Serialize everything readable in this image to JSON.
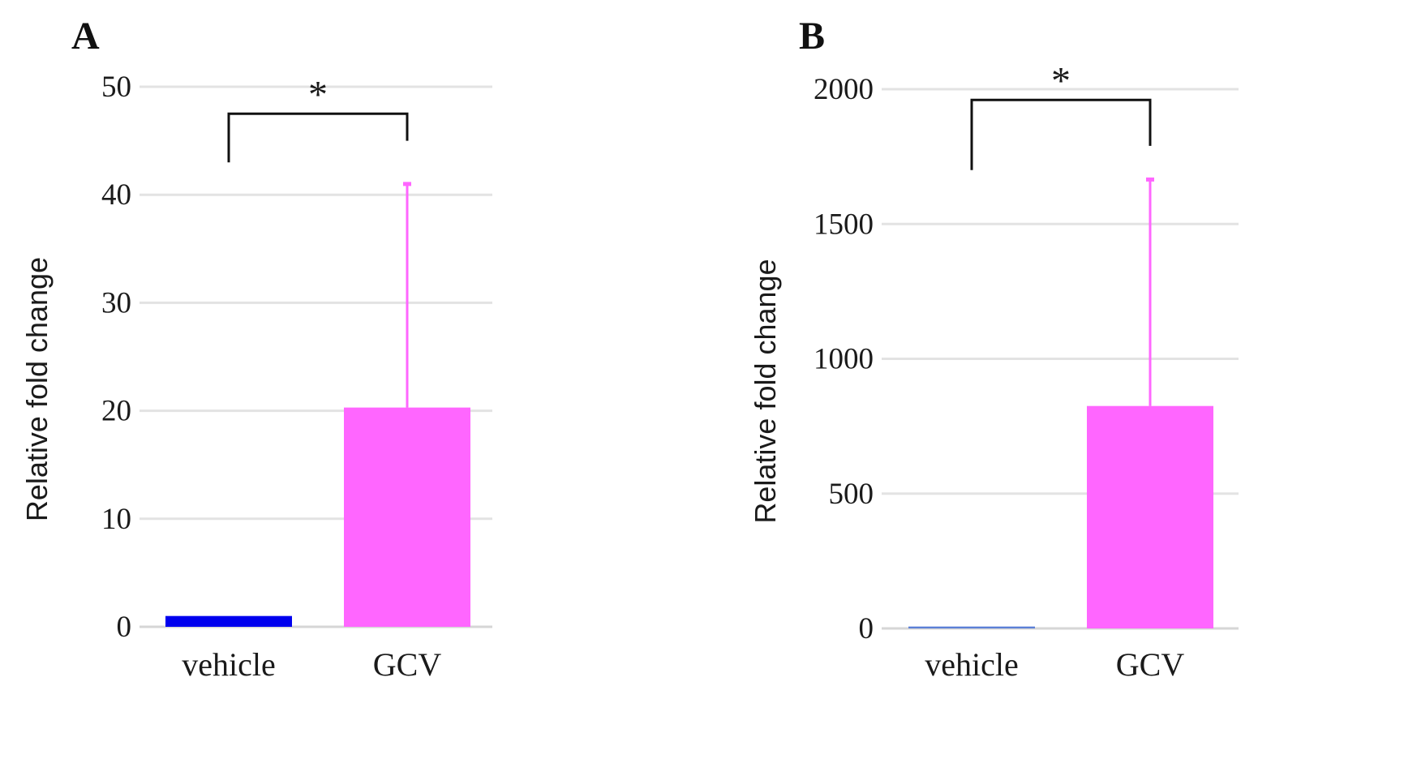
{
  "chart_data": [
    {
      "panel": "A",
      "type": "bar",
      "ylabel": "Relative fold change",
      "categories": [
        "vehicle",
        "GCV"
      ],
      "values": [
        1,
        20.3
      ],
      "error_upper": [
        null,
        41
      ],
      "colors": [
        "#0000ee",
        "#ff66ff"
      ],
      "ylim": [
        0,
        50
      ],
      "yticks": [
        0,
        10,
        20,
        30,
        40,
        50
      ],
      "significance": {
        "label": "*",
        "between": [
          "vehicle",
          "GCV"
        ],
        "left_y": 43,
        "right_y": 45,
        "top_y": 47.5
      },
      "grid": true
    },
    {
      "panel": "B",
      "type": "bar",
      "ylabel": "Relative fold change",
      "categories": [
        "vehicle",
        "GCV"
      ],
      "values": [
        7,
        825
      ],
      "error_upper": [
        null,
        1665
      ],
      "colors": [
        "#5b7fd6",
        "#ff66ff"
      ],
      "ylim": [
        0,
        2000
      ],
      "yticks": [
        0,
        500,
        1000,
        1500,
        2000
      ],
      "significance": {
        "label": "*",
        "between": [
          "vehicle",
          "GCV"
        ],
        "left_y": 1700,
        "right_y": 1790,
        "top_y": 1960
      },
      "grid": true
    }
  ]
}
